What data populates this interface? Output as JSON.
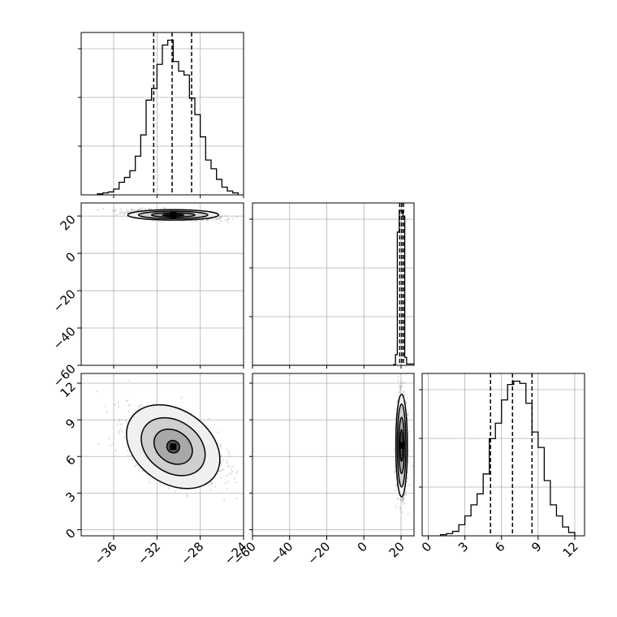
{
  "chart_data": {
    "type": "corner",
    "parameters": [
      {
        "index": 0,
        "range": [
          -39,
          -24
        ],
        "quantiles": [
          -32.3,
          -30.6,
          -28.8
        ]
      },
      {
        "index": 1,
        "range": [
          -60,
          27
        ],
        "quantiles": [
          19.3,
          20.4,
          21.3
        ]
      },
      {
        "index": 2,
        "range": [
          -0.5,
          12.8
        ],
        "quantiles": [
          5.1,
          6.9,
          8.5
        ]
      }
    ],
    "axis_ticks": {
      "p0": [
        "−36",
        "−32",
        "−28",
        "−24"
      ],
      "p1": [
        "−60",
        "−40",
        "−20",
        "0",
        "20"
      ],
      "p2": [
        "0",
        "3",
        "6",
        "9",
        "12"
      ]
    },
    "histograms": [
      {
        "param": 0,
        "bin_edges": [
          -37.5,
          -37,
          -36.5,
          -36,
          -35.5,
          -35,
          -34.5,
          -34,
          -33.5,
          -33,
          -32.5,
          -32,
          -31.5,
          -31,
          -30.5,
          -30,
          -29.5,
          -29,
          -28.5,
          -28,
          -27.5,
          -27,
          -26.5,
          -26,
          -25.5,
          -25,
          -24.5
        ],
        "counts": [
          1,
          2,
          3,
          6,
          13,
          18,
          25,
          40,
          62,
          98,
          110,
          135,
          155,
          160,
          138,
          128,
          124,
          100,
          83,
          60,
          36,
          27,
          16,
          8,
          4,
          2
        ]
      },
      {
        "param": 1,
        "bin_edges": [
          -60,
          16,
          17,
          18,
          19,
          20,
          21,
          22,
          23,
          27
        ],
        "counts": [
          0,
          3,
          40,
          500,
          580,
          580,
          560,
          30,
          5
        ]
      },
      {
        "param": 2,
        "bin_edges": [
          1,
          1.5,
          2,
          2.5,
          3,
          3.5,
          4,
          4.5,
          5,
          5.5,
          6,
          6.5,
          7,
          7.5,
          8,
          8.5,
          9,
          9.5,
          10,
          10.5,
          11,
          11.5,
          12
        ],
        "counts": [
          1,
          2,
          4,
          10,
          18,
          28,
          38,
          56,
          88,
          102,
          123,
          137,
          140,
          138,
          120,
          94,
          80,
          50,
          28,
          18,
          8,
          3
        ]
      }
    ],
    "joint_2d": [
      {
        "x_param": 0,
        "y_param": 1,
        "center": [
          -30.5,
          20.6
        ],
        "contour_half_widths": [
          [
            1.0,
            0.5
          ],
          [
            2.0,
            1.2
          ],
          [
            3.2,
            2.0
          ],
          [
            4.2,
            2.8
          ]
        ]
      },
      {
        "x_param": 0,
        "y_param": 2,
        "center": [
          -30.5,
          6.8
        ],
        "contour_half_widths": [
          [
            0.6,
            0.5
          ],
          [
            1.9,
            1.3
          ],
          [
            3.2,
            2.1
          ],
          [
            4.7,
            3.0
          ]
        ]
      },
      {
        "x_param": 1,
        "y_param": 2,
        "center": [
          20.3,
          6.9
        ],
        "contour_half_widths": [
          [
            0.8,
            1.3
          ],
          [
            1.5,
            2.3
          ],
          [
            2.3,
            3.4
          ],
          [
            3.1,
            4.2
          ]
        ]
      }
    ],
    "grid": true,
    "colors": {
      "line": "#000000",
      "grid": "#b0b0b0",
      "scatter": "#9a9a9a"
    }
  }
}
